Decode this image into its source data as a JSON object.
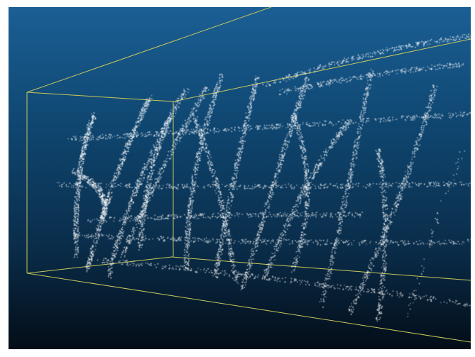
{
  "viewer": {
    "background_top_color": "#1b5f95",
    "background_bottom_color": "#030d18",
    "bounding_box_color": "#c8c85a",
    "point_color": "#ffffff",
    "point_cloud_icon": "point-cloud",
    "bounding_box_icon": "wireframe-box"
  }
}
